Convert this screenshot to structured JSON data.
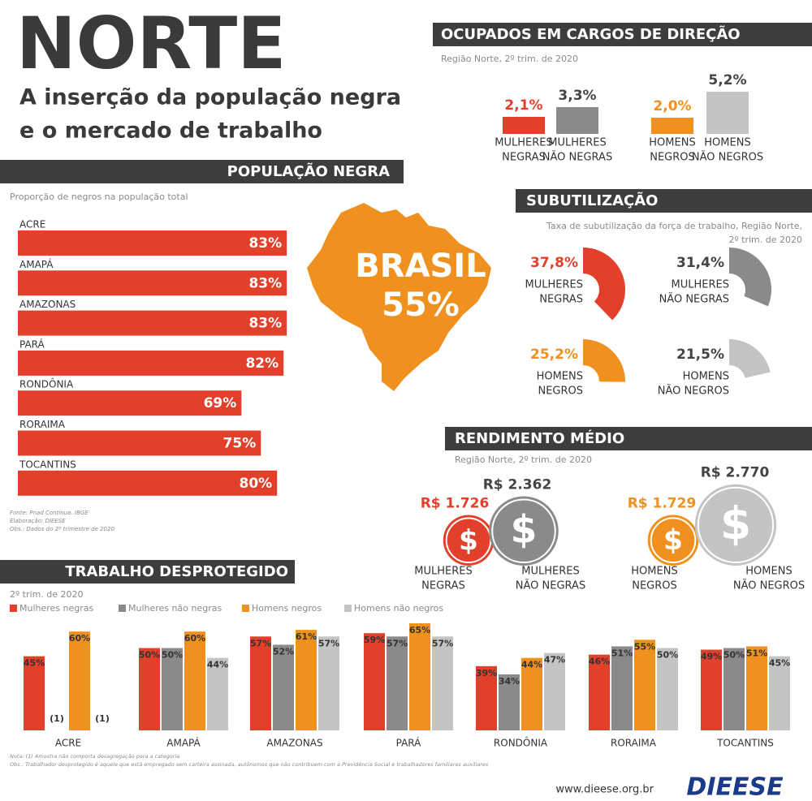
{
  "header": {
    "title": "NORTE",
    "subtitle_lines": [
      "A inserção da população negra",
      "e o mercado de trabalho"
    ]
  },
  "chart_data": [
    {
      "type": "hbar",
      "title": "POPULAÇÃO NEGRA",
      "subtitle": "Proporção de negros na população total",
      "categories": [
        "ACRE",
        "AMAPÁ",
        "AMAZONAS",
        "PARÁ",
        "RONDÔNIA",
        "RORAIMA",
        "TOCANTINS"
      ],
      "values": [
        83,
        83,
        83,
        82,
        69,
        75,
        80
      ],
      "value_labels": [
        "83%",
        "83%",
        "83%",
        "82%",
        "69%",
        "75%",
        "80%"
      ],
      "color": "#e2402a",
      "annotation_lines": [
        "BRASIL",
        "55%"
      ],
      "notes": [
        "Fonte: Pnad Contínua. IBGE",
        "Elaboração: DIEESE",
        "Obs.: Dados do 2º trimestre de 2020"
      ]
    },
    {
      "type": "bar",
      "title": "OCUPADOS EM CARGOS DE DIREÇÃO",
      "subtitle": "Região Norte, 2º trim. de 2020",
      "categories": [
        [
          "MULHERES",
          "NEGRAS"
        ],
        [
          "MULHERES",
          "NÃO NEGRAS"
        ],
        [
          "HOMENS",
          "NEGROS"
        ],
        [
          "HOMENS",
          "NÃO NEGROS"
        ]
      ],
      "values": [
        2.1,
        3.3,
        2.0,
        5.2
      ],
      "value_labels": [
        "2,1%",
        "3,3%",
        "2,0%",
        "5,2%"
      ],
      "colors": [
        "#e2402a",
        "#8a8a8a",
        "#f0901e",
        "#c4c4c4"
      ]
    },
    {
      "type": "arc",
      "title": "SUBUTILIZAÇÃO",
      "subtitle": [
        "Taxa de subutilização da força de trabalho, Região Norte,",
        "2º trim. de 2020"
      ],
      "categories": [
        [
          "MULHERES",
          "NEGRAS"
        ],
        [
          "MULHERES",
          "NÃO NEGRAS"
        ],
        [
          "HOMENS",
          "NEGROS"
        ],
        [
          "HOMENS",
          "NÃO NEGROS"
        ]
      ],
      "values": [
        37.8,
        31.4,
        25.2,
        21.5
      ],
      "value_labels": [
        "37,8%",
        "31,4%",
        "25,2%",
        "21,5%"
      ],
      "colors": [
        "#e2402a",
        "#8a8a8a",
        "#f0901e",
        "#c4c4c4"
      ]
    },
    {
      "type": "bubble",
      "title": "RENDIMENTO MÉDIO",
      "subtitle": "Região Norte,  2º trim. de 2020",
      "categories": [
        [
          "MULHERES",
          "NEGRAS"
        ],
        [
          "MULHERES",
          "NÃO NEGRAS"
        ],
        [
          "HOMENS",
          "NEGROS"
        ],
        [
          "HOMENS",
          "NÃO NEGROS"
        ]
      ],
      "values": [
        1726,
        2362,
        1729,
        2770
      ],
      "value_labels": [
        "R$ 1.726",
        "R$ 2.362",
        "R$ 1.729",
        "R$ 2.770"
      ],
      "colors": [
        "#e2402a",
        "#8a8a8a",
        "#f0901e",
        "#c4c4c4"
      ]
    },
    {
      "type": "grouped_bar",
      "title": "TRABALHO DESPROTEGIDO",
      "subtitle": "2º trim. de 2020",
      "categories": [
        "ACRE",
        "AMAPÁ",
        "AMAZONAS",
        "PARÁ",
        "RONDÔNIA",
        "RORAIMA",
        "TOCANTINS"
      ],
      "series": [
        {
          "name": "Mulheres negras",
          "color": "#e2402a",
          "values": [
            45,
            50,
            57,
            59,
            39,
            46,
            49
          ],
          "value_labels": [
            "45%",
            "50%",
            "57%",
            "59%",
            "39%",
            "46%",
            "49%"
          ]
        },
        {
          "name": "Mulheres não negras",
          "color": "#8a8a8a",
          "values": [
            null,
            50,
            52,
            57,
            34,
            51,
            50
          ],
          "value_labels": [
            "(1)",
            "50%",
            "52%",
            "57%",
            "34%",
            "51%",
            "50%"
          ]
        },
        {
          "name": "Homens negros",
          "color": "#f0901e",
          "values": [
            60,
            60,
            61,
            65,
            44,
            55,
            51
          ],
          "value_labels": [
            "60%",
            "60%",
            "61%",
            "65%",
            "44%",
            "55%",
            "51%"
          ]
        },
        {
          "name": "Homens não negros",
          "color": "#c4c4c4",
          "values": [
            null,
            44,
            57,
            57,
            47,
            50,
            45
          ],
          "value_labels": [
            "(1)",
            "44%",
            "57%",
            "57%",
            "47%",
            "50%",
            "45%"
          ]
        }
      ],
      "notes": [
        "Nota: (1) Amostra não comporta desagregação para a categoria",
        "Obs.: Trabalhador desprotegido é aquele que está empregado sem carteira assinada, autônomos que não contribuem com a Previdência Social e trabalhadores familiares auxiliares"
      ]
    }
  ],
  "footer": {
    "url": "www.dieese.org.br",
    "logo": "DIEESE"
  }
}
